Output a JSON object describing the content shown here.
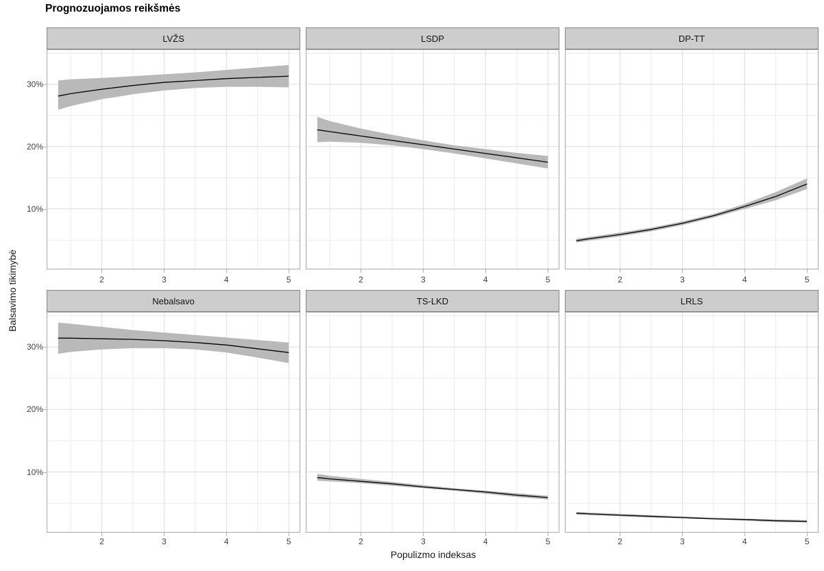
{
  "title": "Prognozuojamos reikšmės",
  "chart_data": {
    "type": "line",
    "title": "Prognozuojamos reikšmės",
    "xlabel": "Populizmo indeksas",
    "ylabel": "Balsavimo tikimybė",
    "grid": true,
    "legend": false,
    "facet_layout": "2 rows x 3 columns",
    "x_domain": [
      1.115,
      5.185
    ],
    "y_domain": [
      0.3,
      35.6
    ],
    "x_ticks": {
      "major": [
        2,
        3,
        4,
        5
      ],
      "minor": [
        1.5,
        2.5,
        3.5,
        4.5
      ],
      "labels": [
        "2",
        "3",
        "4",
        "5"
      ]
    },
    "y_ticks": {
      "major": [
        10,
        20,
        30
      ],
      "minor": [
        5,
        15,
        25,
        35
      ],
      "labels": [
        "10%",
        "20%",
        "30%"
      ]
    },
    "x": [
      1.3,
      1.5,
      2,
      2.5,
      3,
      3.5,
      4,
      4.5,
      5
    ],
    "facets": [
      {
        "label": "LVŽS",
        "y": [
          28.1,
          28.5,
          29.2,
          29.8,
          30.3,
          30.6,
          30.9,
          31.1,
          31.3
        ],
        "ci_lower": [
          25.9,
          26.5,
          27.6,
          28.4,
          29.0,
          29.4,
          29.6,
          29.6,
          29.5
        ],
        "ci_upper": [
          30.6,
          30.8,
          31.0,
          31.3,
          31.6,
          31.9,
          32.3,
          32.7,
          33.1
        ]
      },
      {
        "label": "LSDP",
        "y": [
          22.7,
          22.4,
          21.7,
          21.0,
          20.3,
          19.6,
          18.9,
          18.2,
          17.5
        ],
        "ci_lower": [
          20.7,
          20.8,
          20.6,
          20.2,
          19.6,
          18.9,
          18.1,
          17.3,
          16.5
        ],
        "ci_upper": [
          24.8,
          24.1,
          22.9,
          21.9,
          21.0,
          20.2,
          19.6,
          19.0,
          18.5
        ]
      },
      {
        "label": "DP-TT",
        "y": [
          4.9,
          5.2,
          5.9,
          6.7,
          7.7,
          8.9,
          10.4,
          12.0,
          14.0
        ],
        "ci_lower": [
          4.6,
          4.9,
          5.6,
          6.4,
          7.4,
          8.6,
          10.0,
          11.4,
          13.2
        ],
        "ci_upper": [
          5.2,
          5.5,
          6.2,
          7.0,
          8.0,
          9.2,
          10.8,
          12.7,
          14.9
        ]
      },
      {
        "label": "Nebalsavo",
        "y": [
          31.4,
          31.4,
          31.3,
          31.2,
          31.0,
          30.7,
          30.3,
          29.7,
          29.1
        ],
        "ci_lower": [
          28.9,
          29.2,
          29.6,
          29.8,
          29.8,
          29.6,
          29.1,
          28.3,
          27.4
        ],
        "ci_upper": [
          33.9,
          33.7,
          33.2,
          32.7,
          32.3,
          31.9,
          31.5,
          31.1,
          30.7
        ]
      },
      {
        "label": "TS-LKD",
        "y": [
          9.1,
          8.9,
          8.5,
          8.1,
          7.6,
          7.2,
          6.8,
          6.3,
          5.9
        ],
        "ci_lower": [
          8.6,
          8.5,
          8.2,
          7.8,
          7.4,
          7.0,
          6.5,
          6.0,
          5.6
        ],
        "ci_upper": [
          9.7,
          9.4,
          8.9,
          8.4,
          7.9,
          7.4,
          7.0,
          6.6,
          6.2
        ]
      },
      {
        "label": "LRLS",
        "y": [
          3.4,
          3.3,
          3.1,
          2.9,
          2.7,
          2.5,
          2.4,
          2.2,
          2.1
        ],
        "ci_lower": [
          3.2,
          3.1,
          2.9,
          2.7,
          2.6,
          2.4,
          2.2,
          2.0,
          1.9
        ],
        "ci_upper": [
          3.6,
          3.5,
          3.3,
          3.1,
          2.9,
          2.7,
          2.5,
          2.4,
          2.3
        ]
      }
    ],
    "colors": {
      "line": "#000000",
      "ribbon": "#b9b9b9",
      "grid_major": "#dcdcdc",
      "grid_minor": "#ebebeb",
      "panel_border": "#a8a8a8",
      "strip_fill": "#cdcdcd",
      "strip_border": "#858585",
      "tick_text": "#404040"
    }
  }
}
